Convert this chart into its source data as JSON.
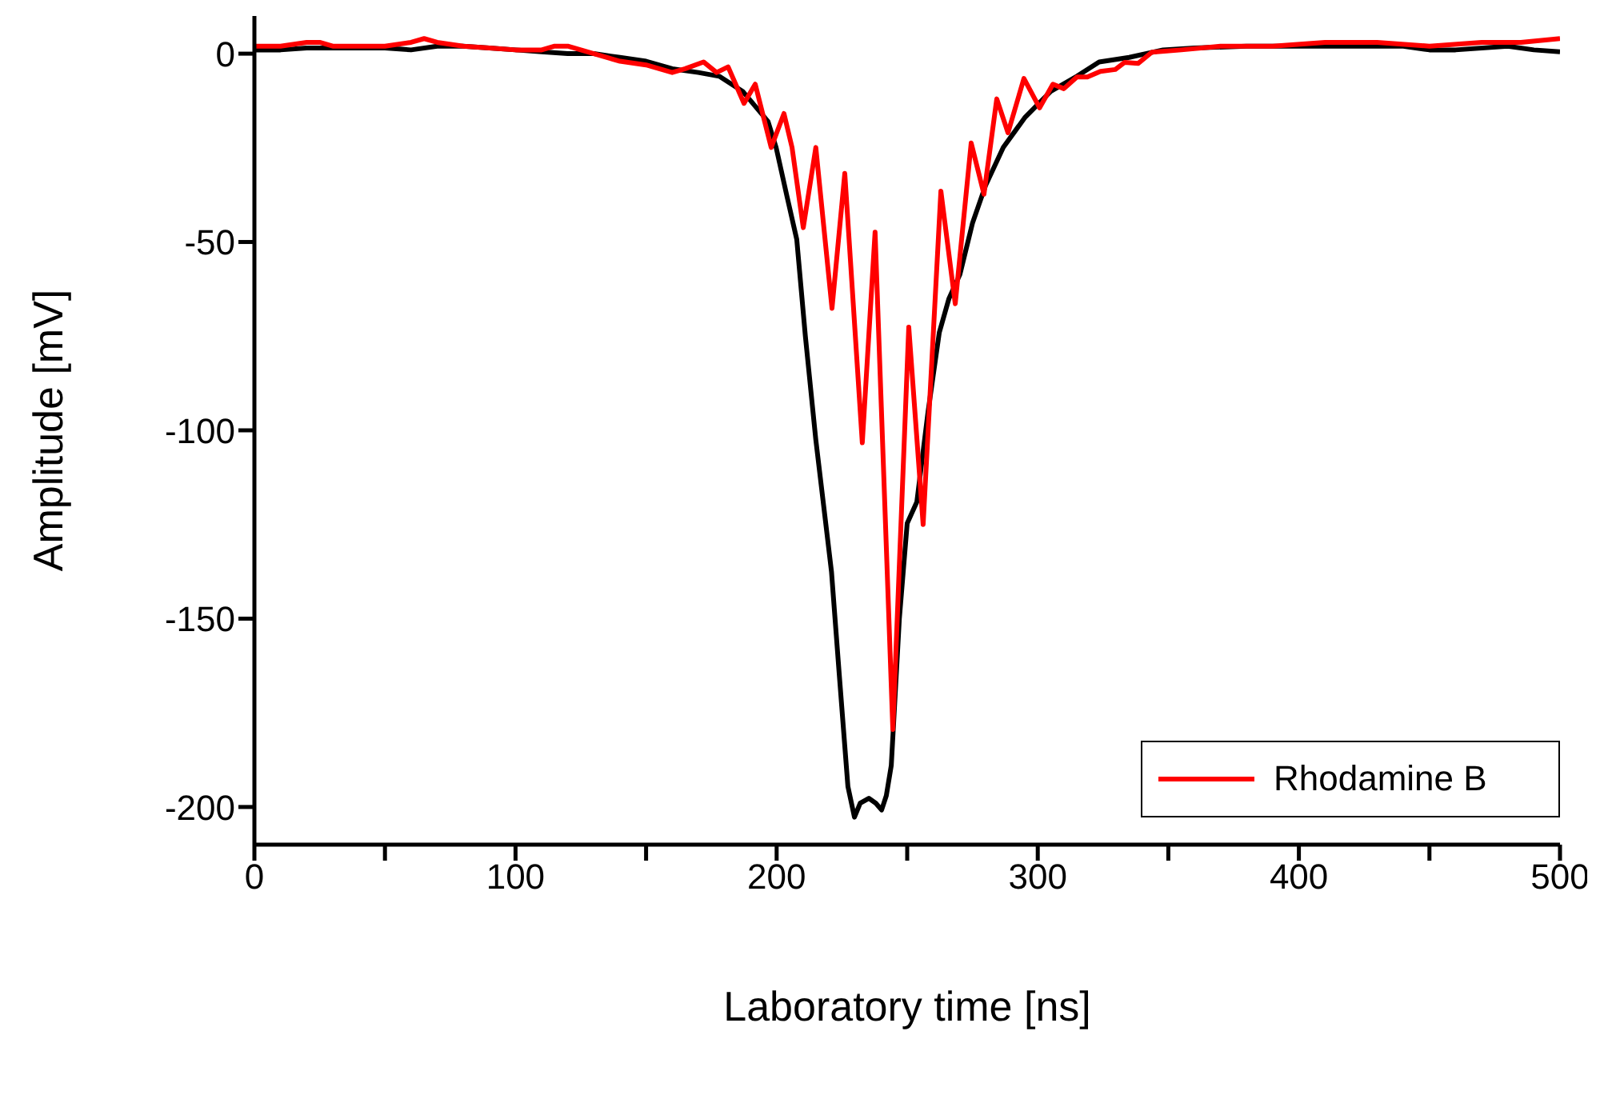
{
  "chart_data": {
    "type": "line",
    "xlabel": "Laboratory time [ns]",
    "ylabel": "Amplitude [mV]",
    "xlim": [
      0,
      500
    ],
    "ylim": [
      -210,
      10
    ],
    "xticks": [
      0,
      {
        "value": 50,
        "label": null
      },
      100,
      {
        "value": 150,
        "label": null
      },
      200,
      {
        "value": 250,
        "label": null
      },
      300,
      {
        "value": 350,
        "label": null
      },
      400,
      {
        "value": 450,
        "label": null
      },
      500
    ],
    "yticks": [
      -200,
      -150,
      -100,
      -50,
      0
    ],
    "legend": "bottom right",
    "marker": "none",
    "line_style": "solid",
    "series": [
      {
        "color": "#000000",
        "x": [
          0,
          10,
          20,
          30,
          40,
          50,
          60,
          70,
          80,
          90,
          100,
          110,
          120,
          130,
          140,
          150,
          160,
          170,
          178,
          187,
          196.7,
          199.8,
          204,
          207.7,
          211,
          215,
          218,
          221,
          224,
          227.3,
          229.8,
          232,
          235.3,
          238,
          240.2,
          242,
          243.9,
          247,
          250,
          253.7,
          258,
          262.3,
          266,
          270.2,
          275,
          280,
          286.8,
          295,
          305,
          315,
          323.5,
          335,
          348,
          360,
          380,
          400,
          420,
          440,
          450,
          460,
          480,
          490,
          500
        ],
        "values": [
          1,
          1,
          1.5,
          1.5,
          1.5,
          1.5,
          1,
          2,
          2,
          1.5,
          1,
          0.5,
          0,
          0,
          -1,
          -2,
          -4,
          -5,
          -6,
          -10,
          -18,
          -24.9,
          -38,
          -49.3,
          -75,
          -102.5,
          -120,
          -137.5,
          -165,
          -194.6,
          -202.7,
          -199,
          -197.7,
          -199,
          -200.8,
          -197,
          -189,
          -150,
          -124.7,
          -119,
          -95,
          -74,
          -65,
          -58.6,
          -45,
          -35,
          -24.9,
          -17,
          -10,
          -6,
          -2.2,
          -1,
          1,
          1.5,
          2,
          2,
          2,
          2,
          1,
          1,
          2,
          1,
          0.5
        ]
      },
      {
        "name": "Rhodamine B",
        "color": "#ff0000",
        "x": [
          0,
          10,
          20,
          25,
          30,
          40,
          50,
          60,
          65,
          70,
          80,
          90,
          100,
          110,
          115,
          120,
          130,
          140,
          150,
          160,
          165,
          172,
          177,
          181.4,
          187.5,
          191.8,
          197.9,
          202.8,
          205.9,
          210.2,
          215,
          221.2,
          226.1,
          232.8,
          237.7,
          244.5,
          250.6,
          256.1,
          262.9,
          268.4,
          274.5,
          279.4,
          284.3,
          288.6,
          294.7,
          300.7,
          305.8,
          310,
          315,
          319,
          324,
          329.7,
          333.3,
          338.4,
          343.7,
          355,
          370,
          390,
          410,
          430,
          450,
          470,
          485,
          500
        ],
        "values": [
          2,
          2,
          3,
          3,
          2,
          2,
          2,
          3,
          4,
          3,
          2,
          1.5,
          1,
          1,
          2,
          2,
          0,
          -2,
          -3,
          -5,
          -4,
          -2.2,
          -5,
          -3.5,
          -13.2,
          -8.1,
          -24.9,
          -15.9,
          -24.9,
          -46.2,
          -24.9,
          -67.6,
          -31.8,
          -103.3,
          -47.4,
          -179.4,
          -72.6,
          -125,
          -36.5,
          -66.4,
          -23.7,
          -37.3,
          -12,
          -21,
          -6.6,
          -14.4,
          -8.1,
          -9.3,
          -6.2,
          -6.2,
          -4.7,
          -4.2,
          -2.3,
          -2.6,
          0.4,
          1,
          2,
          2,
          3,
          3,
          2,
          3,
          3,
          4
        ]
      }
    ]
  }
}
